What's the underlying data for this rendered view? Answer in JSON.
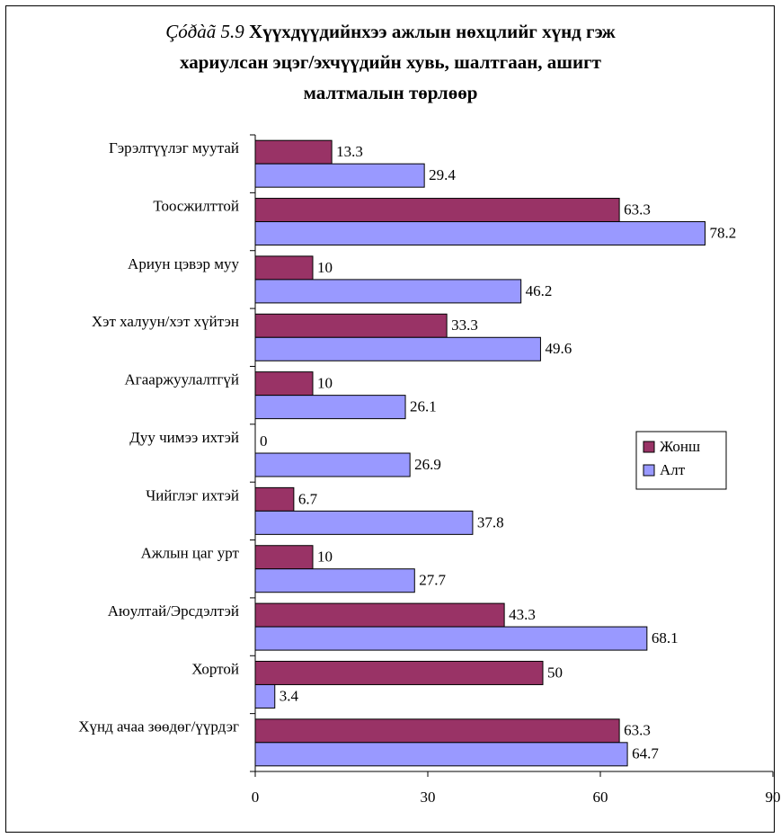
{
  "chart_data": {
    "type": "bar",
    "orientation": "horizontal",
    "title_prefix": "Çóðàã 5.9",
    "title_lines": [
      "Хүүхдүүдийнхээ ажлын нөхцлийг хүнд гэж",
      "хариулсан эцэг/эхчүүдийн хувь,  шалтгаан, ашигт",
      "малтмалын төрлөөр"
    ],
    "categories": [
      "Гэрэлтүүлэг муутай",
      "Тоосжилттой",
      "Ариун цэвэр муу",
      "Хэт халуун/хэт хүйтэн",
      "Агааржуулалтгүй",
      "Дуу чимээ ихтэй",
      "Чийглэг ихтэй",
      "Ажлын цаг урт",
      "Аюултай/Эрсдэлтэй",
      "Хортой",
      "Хүнд ачаа зөөдөг/үүрдэг"
    ],
    "series": [
      {
        "name": "Жонш",
        "color": "#993366",
        "values": [
          13.3,
          63.3,
          10,
          33.3,
          10,
          0,
          6.7,
          10,
          43.3,
          50,
          63.3
        ]
      },
      {
        "name": "Алт",
        "color": "#9999ff",
        "values": [
          29.4,
          78.2,
          46.2,
          49.6,
          26.1,
          26.9,
          37.8,
          27.7,
          68.1,
          3.4,
          64.7
        ]
      }
    ],
    "value_labels": [
      [
        "13.3",
        "63.3",
        "10",
        "33.3",
        "10",
        "0",
        "6.7",
        "10",
        "43.3",
        "50",
        "63.3"
      ],
      [
        "29.4",
        "78.2",
        "46.2",
        "49.6",
        "26.1",
        "26.9",
        "37.8",
        "27.7",
        "68.1",
        "3.4",
        "64.7"
      ]
    ],
    "xlim": [
      0,
      90
    ],
    "xticks": [
      0,
      30,
      60,
      90
    ],
    "xtick_labels": [
      "0",
      "30",
      "60",
      "90"
    ],
    "grid": false,
    "legend_position": "right"
  }
}
